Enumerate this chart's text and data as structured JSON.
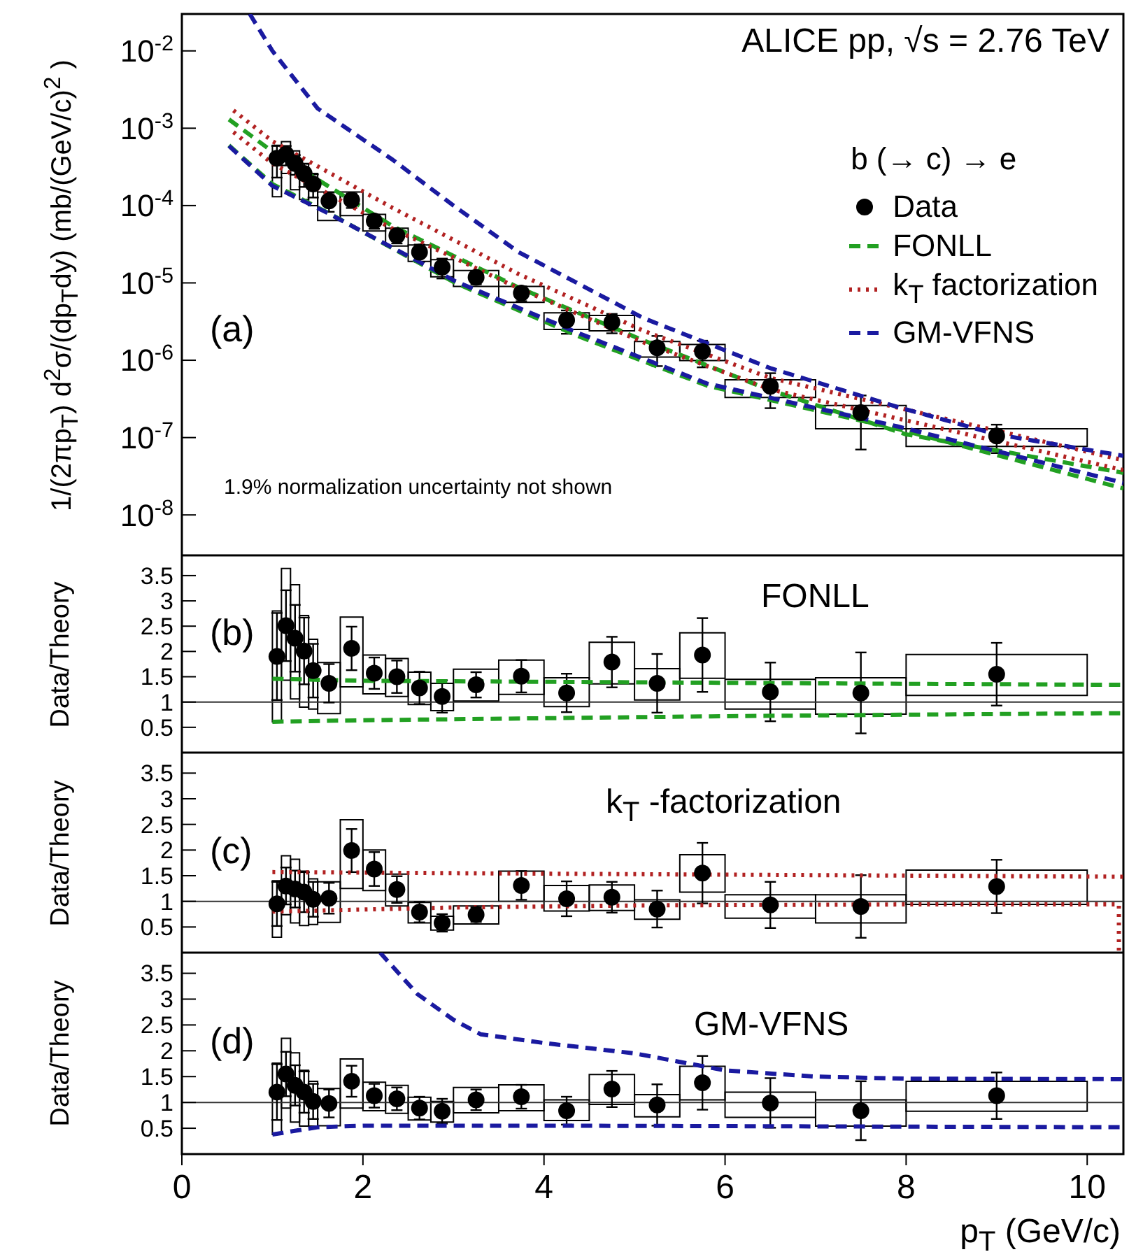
{
  "chart_data": [
    {
      "type": "scatter",
      "ylabel": "1/(2πp$_{T}$) d$^{2}$σ/(dp$_{T}$dy) (mb/(GeV/c)$^{2}$ )",
      "xlim": [
        0,
        10.4
      ],
      "xticks": [
        0,
        2,
        4,
        6,
        8,
        10
      ],
      "ylim": [
        3e-09,
        0.03
      ],
      "yticks": [
        {
          "value": 1e-08,
          "label": "10$^{-8}$"
        },
        {
          "value": 1e-07,
          "label": "10$^{-7}$"
        },
        {
          "value": 1e-06,
          "label": "10$^{-6}$"
        },
        {
          "value": 1e-05,
          "label": "10$^{-5}$"
        },
        {
          "value": 0.0001,
          "label": "10$^{-4}$"
        },
        {
          "value": 0.001,
          "label": "10$^{-3}$"
        },
        {
          "value": 0.01,
          "label": "10$^{-2}$"
        }
      ],
      "log": true,
      "tick_labels": "y",
      "legend": "top right",
      "legend_title": "b (→ c) → e",
      "annotations": [
        "ALICE pp, √s = 2.76 TeV",
        "(a)",
        "1.9% normalization uncertainty not shown"
      ],
      "series": [
        {
          "name": "Data",
          "type": "scatter",
          "color": "#000000",
          "marker": "circle",
          "x": [
            1.05,
            1.15,
            1.25,
            1.35,
            1.45,
            1.625,
            1.875,
            2.125,
            2.375,
            2.625,
            2.875,
            3.25,
            3.75,
            4.25,
            4.75,
            5.25,
            5.75,
            6.5,
            7.5,
            9
          ],
          "values": [
            0.00041,
            0.00046,
            0.00035,
            0.00026,
            0.00019,
            0.000115,
            0.000118,
            6.3e-05,
            4.1e-05,
            2.5e-05,
            1.6e-05,
            1.18e-05,
            7.4e-06,
            3.3e-06,
            3.1e-06,
            1.45e-06,
            1.3e-06,
            4.6e-07,
            2.1e-07,
            1.05e-07
          ],
          "errors": [
            0.00018,
            0.00013,
            0.0001,
            8.6e-05,
            6.3e-05,
            3.2e-05,
            2.5e-05,
            1.3e-05,
            8.6e-06,
            6.3e-06,
            4.6e-06,
            2.2e-06,
            1.6e-06,
            1.1e-06,
            8.7e-07,
            6.1e-07,
            4.9e-07,
            2.2e-07,
            1.4e-07,
            4.2e-08
          ]
        },
        {
          "type": "histogram",
          "color": "#000000",
          "bins": [
            1,
            1.1,
            1.2,
            1.3,
            1.4,
            1.5,
            1.75,
            2,
            2.25,
            2.5,
            2.75,
            3,
            3.5,
            4,
            4.5,
            5,
            5.5,
            6,
            7,
            8,
            10
          ],
          "base": [
            0.00013,
            0.00026,
            0.00016,
            0.00012,
            0.0001,
            6.4e-05,
            7.4e-05,
            4.7e-05,
            3e-05,
            1.9e-05,
            1.2e-05,
            9e-06,
            5.6e-06,
            2.5e-06,
            2.4e-06,
            1.1e-06,
            9.9e-07,
            3.3e-07,
            1.3e-07,
            7.7e-08
          ],
          "values": [
            0.00047,
            0.00041,
            0.00035,
            0.00023,
            0.00016,
            8.6e-05,
            7.6e-05,
            3e-05,
            2.1e-05,
            1.2e-05,
            8e-06,
            5.5e-06,
            3.4e-06,
            1.6e-06,
            1.4e-06,
            6.5e-07,
            6.1e-07,
            2.3e-07,
            1.3e-07,
            5.3e-08
          ]
        },
        {
          "name": "FONLL",
          "type": "line",
          "color": "#22a022",
          "line_style": "dashed",
          "x": [
            0.52,
            1.0,
            2.33,
            3.72,
            5.1,
            6.5,
            8,
            10.4
          ],
          "values": [
            0.0013,
            0.0005,
            5.4e-05,
            8.7e-06,
            1.8e-06,
            4.1e-07,
            1.1e-07,
            3.5e-08
          ]
        },
        {
          "type": "line",
          "color": "#22a022",
          "line_style": "dashed",
          "x": [
            0.52,
            1.0,
            1.63,
            3.02,
            4.4,
            5.8,
            7.9,
            10.4
          ],
          "values": [
            0.0006,
            0.00019,
            7.9e-05,
            1e-05,
            2e-06,
            4.7e-07,
            1.3e-07,
            2.2e-08
          ]
        },
        {
          "name": "k$_{T}$ factorization",
          "type": "line",
          "color": "#b22222",
          "line_style": "dotted",
          "x": [
            0.57,
            1.0,
            2.33,
            3.72,
            5.1,
            6.5,
            10.4
          ],
          "values": [
            0.0017,
            0.00068,
            9.3e-05,
            1.3e-05,
            2.4e-06,
            5.9e-07,
            5.1e-08
          ]
        },
        {
          "type": "line",
          "color": "#b22222",
          "line_style": "dotted",
          "x": [
            0.57,
            1.0,
            2.33,
            3.72,
            5.1,
            6.5,
            10.4
          ],
          "values": [
            0.00089,
            0.00035,
            5e-05,
            8.5e-06,
            1.7e-06,
            4.2e-07,
            3.8e-08
          ]
        },
        {
          "name": "GM-VFNS",
          "type": "line",
          "color": "#1a1aa0",
          "line_style": "dashed",
          "x": [
            0.75,
            1.0,
            1.5,
            2.33,
            3.0,
            3.72,
            5.1,
            6.5,
            7.9,
            9,
            10.4
          ],
          "values": [
            0.03,
            0.01,
            0.0018,
            0.00039,
            0.0001,
            2.5e-05,
            3.5e-06,
            7.9e-07,
            2.5e-07,
            1.1e-07,
            5.8e-08
          ]
        },
        {
          "type": "line",
          "color": "#1a1aa0",
          "line_style": "dashed",
          "x": [
            0.52,
            1.0,
            1.63,
            3.02,
            4.4,
            5.8,
            7.9,
            10.4
          ],
          "values": [
            0.00059,
            0.00018,
            7.8e-05,
            1.05e-05,
            2.2e-06,
            5e-07,
            1.4e-07,
            2.6e-08
          ]
        }
      ]
    },
    {
      "type": "scatter",
      "ylabel": "Data/Theory",
      "xlim": [
        0,
        10.4
      ],
      "xticks": [
        0,
        2,
        4,
        6,
        8,
        10
      ],
      "ylim": [
        0,
        3.9
      ],
      "yticks": [
        0.5,
        1,
        1.5,
        2,
        2.5,
        3,
        3.5
      ],
      "tick_labels": "y",
      "annotations": [
        "(b)",
        "FONLL"
      ],
      "ref_lines": [
        {
          "axis": "y",
          "value": 1,
          "color": "#333333"
        }
      ],
      "series": [
        {
          "type": "scatter",
          "color": "#000000",
          "marker": "circle",
          "x": [
            1.05,
            1.15,
            1.25,
            1.35,
            1.45,
            1.625,
            1.875,
            2.125,
            2.375,
            2.625,
            2.875,
            3.25,
            3.75,
            4.25,
            4.75,
            5.25,
            5.75,
            6.5,
            7.5,
            9
          ],
          "values": [
            1.9,
            2.51,
            2.26,
            2.01,
            1.62,
            1.37,
            2.06,
            1.57,
            1.5,
            1.28,
            1.11,
            1.34,
            1.51,
            1.18,
            1.79,
            1.37,
            1.93,
            1.2,
            1.18,
            1.55
          ],
          "errors": [
            0.86,
            0.7,
            0.66,
            0.66,
            0.53,
            0.38,
            0.43,
            0.31,
            0.32,
            0.32,
            0.32,
            0.25,
            0.32,
            0.38,
            0.5,
            0.58,
            0.73,
            0.58,
            0.8,
            0.62
          ]
        },
        {
          "type": "histogram",
          "color": "#000000",
          "bins": [
            1,
            1.1,
            1.2,
            1.3,
            1.4,
            1.5,
            1.75,
            2,
            2.25,
            2.5,
            2.75,
            3,
            3.5,
            4,
            4.5,
            5,
            5.5,
            6,
            7,
            8,
            10
          ],
          "base": [
            0.61,
            1.43,
            1.06,
            0.9,
            0.86,
            0.77,
            1.3,
            1.16,
            1.11,
            0.95,
            0.83,
            1.02,
            1.15,
            0.91,
            1.36,
            1.04,
            1.47,
            0.86,
            0.76,
            1.13
          ],
          "values": [
            2.19,
            2.21,
            2.26,
            1.81,
            1.38,
            1.01,
            1.38,
            0.77,
            0.75,
            0.64,
            0.54,
            0.63,
            0.68,
            0.57,
            0.82,
            0.62,
            0.9,
            0.59,
            0.72,
            0.81
          ]
        },
        {
          "type": "line",
          "color": "#22a022",
          "line_style": "dashed",
          "x": [
            1.0,
            2,
            4,
            6,
            8,
            10.4
          ],
          "values": [
            1.46,
            1.42,
            1.4,
            1.38,
            1.36,
            1.34
          ]
        },
        {
          "type": "line",
          "color": "#22a022",
          "line_style": "dashed",
          "x": [
            1.0,
            2,
            4,
            6,
            8,
            10.4
          ],
          "values": [
            0.61,
            0.64,
            0.68,
            0.72,
            0.75,
            0.78
          ]
        }
      ]
    },
    {
      "type": "scatter",
      "ylabel": "Data/Theory",
      "xlim": [
        0,
        10.4
      ],
      "xticks": [
        0,
        2,
        4,
        6,
        8,
        10
      ],
      "ylim": [
        0,
        3.9
      ],
      "yticks": [
        0.5,
        1,
        1.5,
        2,
        2.5,
        3,
        3.5
      ],
      "tick_labels": "y",
      "annotations": [
        "(c)",
        "k$_{T}$ -factorization"
      ],
      "ref_lines": [
        {
          "axis": "y",
          "value": 1,
          "color": "#333333"
        }
      ],
      "series": [
        {
          "type": "scatter",
          "color": "#000000",
          "marker": "circle",
          "x": [
            1.05,
            1.15,
            1.25,
            1.35,
            1.45,
            1.625,
            1.875,
            2.125,
            2.375,
            2.625,
            2.875,
            3.25,
            3.75,
            4.25,
            4.75,
            5.25,
            5.75,
            6.5,
            7.5,
            9
          ],
          "values": [
            0.95,
            1.3,
            1.24,
            1.18,
            1.04,
            1.06,
            1.99,
            1.63,
            1.23,
            0.79,
            0.58,
            0.74,
            1.31,
            1.05,
            1.08,
            0.85,
            1.55,
            0.93,
            0.9,
            1.29
          ],
          "errors": [
            0.43,
            0.36,
            0.36,
            0.39,
            0.34,
            0.3,
            0.42,
            0.33,
            0.26,
            0.2,
            0.17,
            0.14,
            0.28,
            0.34,
            0.3,
            0.36,
            0.59,
            0.45,
            0.61,
            0.52
          ]
        },
        {
          "type": "histogram",
          "color": "#000000",
          "bins": [
            1,
            1.1,
            1.2,
            1.3,
            1.4,
            1.5,
            1.75,
            2,
            2.25,
            2.5,
            2.75,
            3,
            3.5,
            4,
            4.5,
            5,
            5.5,
            6,
            7,
            8,
            10
          ],
          "base": [
            0.3,
            0.74,
            0.58,
            0.53,
            0.55,
            0.59,
            1.25,
            1.21,
            0.91,
            0.58,
            0.44,
            0.56,
            1.0,
            0.81,
            0.82,
            0.65,
            1.18,
            0.67,
            0.58,
            0.94
          ],
          "values": [
            1.1,
            1.15,
            1.24,
            1.06,
            0.89,
            0.79,
            1.34,
            0.79,
            0.62,
            0.4,
            0.27,
            0.35,
            0.59,
            0.5,
            0.5,
            0.38,
            0.73,
            0.46,
            0.55,
            0.67
          ]
        },
        {
          "type": "line",
          "color": "#b22222",
          "line_style": "dotted",
          "x": [
            1.0,
            3,
            6,
            10.4
          ],
          "values": [
            1.57,
            1.55,
            1.52,
            1.48
          ]
        },
        {
          "type": "line",
          "color": "#b22222",
          "line_style": "dotted",
          "x": [
            1.0,
            2,
            3,
            5,
            8,
            10.35,
            10.35
          ],
          "values": [
            0.8,
            0.84,
            0.88,
            0.92,
            0.94,
            0.94,
            0
          ]
        }
      ]
    },
    {
      "type": "scatter",
      "ylabel": "Data/Theory",
      "xlabel": "p$_{T}$ (GeV/c)",
      "xlim": [
        0,
        10.4
      ],
      "xticks": [
        0,
        2,
        4,
        6,
        8,
        10
      ],
      "ylim": [
        0,
        3.9
      ],
      "yticks": [
        0.5,
        1,
        1.5,
        2,
        2.5,
        3,
        3.5
      ],
      "annotations": [
        "(d)",
        "GM-VFNS"
      ],
      "ref_lines": [
        {
          "axis": "y",
          "value": 1,
          "color": "#333333"
        }
      ],
      "series": [
        {
          "type": "scatter",
          "color": "#000000",
          "marker": "circle",
          "x": [
            1.05,
            1.15,
            1.25,
            1.35,
            1.45,
            1.625,
            1.875,
            2.125,
            2.375,
            2.625,
            2.875,
            3.25,
            3.75,
            4.25,
            4.75,
            5.25,
            5.75,
            6.5,
            7.5,
            9
          ],
          "values": [
            1.2,
            1.55,
            1.33,
            1.2,
            1.02,
            0.98,
            1.41,
            1.13,
            1.07,
            0.89,
            0.83,
            1.05,
            1.11,
            0.84,
            1.26,
            0.95,
            1.38,
            0.99,
            0.84,
            1.13
          ],
          "errors": [
            0.54,
            0.43,
            0.39,
            0.4,
            0.34,
            0.27,
            0.3,
            0.23,
            0.22,
            0.22,
            0.24,
            0.2,
            0.23,
            0.27,
            0.35,
            0.4,
            0.52,
            0.48,
            0.57,
            0.45
          ]
        },
        {
          "type": "histogram",
          "color": "#000000",
          "bins": [
            1,
            1.1,
            1.2,
            1.3,
            1.4,
            1.5,
            1.75,
            2,
            2.25,
            2.5,
            2.75,
            3,
            3.5,
            4,
            4.5,
            5,
            5.5,
            6,
            7,
            8,
            10
          ],
          "base": [
            0.38,
            0.89,
            0.62,
            0.54,
            0.54,
            0.55,
            0.89,
            0.84,
            0.79,
            0.66,
            0.62,
            0.8,
            0.84,
            0.65,
            0.96,
            0.72,
            1.05,
            0.71,
            0.54,
            0.83
          ],
          "values": [
            1.38,
            1.35,
            1.34,
            1.08,
            0.87,
            0.72,
            0.95,
            0.55,
            0.54,
            0.44,
            0.4,
            0.49,
            0.5,
            0.4,
            0.58,
            0.43,
            0.65,
            0.49,
            0.51,
            0.58
          ]
        },
        {
          "type": "line",
          "color": "#1a1aa0",
          "line_style": "dashed",
          "x": [
            2.19,
            2.6,
            3.0,
            3.3,
            4,
            5,
            6,
            7,
            8,
            10.4
          ],
          "values": [
            3.9,
            3.1,
            2.6,
            2.32,
            2.15,
            1.95,
            1.62,
            1.5,
            1.46,
            1.45
          ]
        },
        {
          "type": "line",
          "color": "#1a1aa0",
          "line_style": "dashed",
          "x": [
            1.0,
            1.5,
            2,
            4,
            10.4
          ],
          "values": [
            0.38,
            0.52,
            0.55,
            0.55,
            0.52
          ]
        }
      ]
    }
  ]
}
